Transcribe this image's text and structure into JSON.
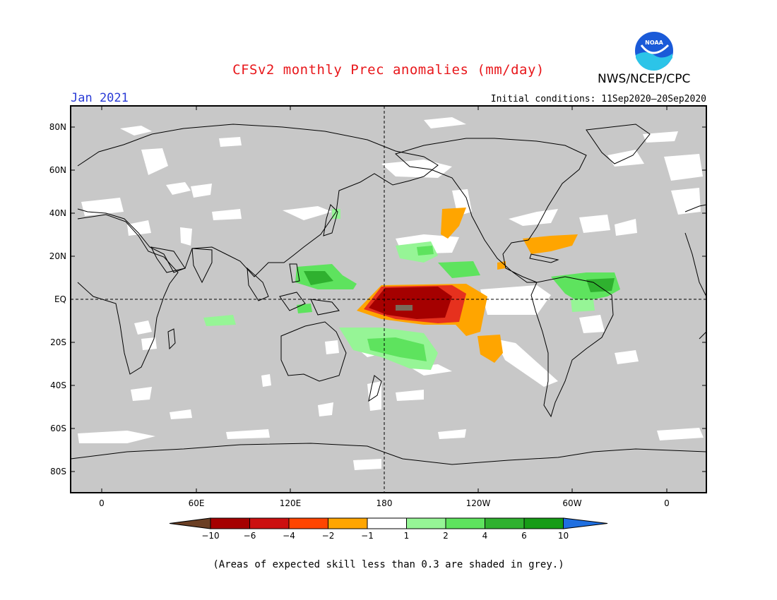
{
  "header": {
    "title": "CFSv2 monthly Prec anomalies (mm/day)",
    "agency": "NWS/NCEP/CPC",
    "logo_text": "NOAA",
    "month": "Jan 2021",
    "initial_conditions": "Initial conditions: 11Sep2020–20Sep2020"
  },
  "map": {
    "projection": "equirectangular",
    "lon_range": [
      -20,
      380
    ],
    "lat_range": [
      -90,
      90
    ],
    "x_ticks": [
      "0",
      "60E",
      "120E",
      "180",
      "120W",
      "60W",
      "0"
    ],
    "y_ticks": [
      "80N",
      "60N",
      "40N",
      "20N",
      "EQ",
      "20S",
      "40S",
      "60S",
      "80S"
    ],
    "land_color": "#c8c8c8",
    "grid_style": "dashed lines at equator and 180"
  },
  "anomaly_regions": [
    {
      "name": "central-pacific-dry-core",
      "value": -6,
      "color": "#a50000"
    },
    {
      "name": "central-pacific-dry",
      "value": -4,
      "color": "#e6311e"
    },
    {
      "name": "eastern-pacific-dry",
      "value": -2,
      "color": "#ffa500"
    },
    {
      "name": "north-pacific-dry",
      "value": -2,
      "color": "#ffa500"
    },
    {
      "name": "gulf-of-mexico-dry",
      "value": -2,
      "color": "#ffa500"
    },
    {
      "name": "western-pacific-wet",
      "value": 4,
      "color": "#2fb12f"
    },
    {
      "name": "south-pacific-wet",
      "value": 2,
      "color": "#5ee35e"
    },
    {
      "name": "amazon-wet",
      "value": 4,
      "color": "#2fb12f"
    }
  ],
  "colorbar": {
    "labels": [
      "−10",
      "−6",
      "−4",
      "−2",
      "−1",
      "1",
      "2",
      "4",
      "6",
      "10"
    ],
    "colors": [
      "#6b3f24",
      "#a50000",
      "#cc1010",
      "#ff4500",
      "#ffa500",
      "#ffffff",
      "#96f596",
      "#5ee35e",
      "#2fb12f",
      "#169c16",
      "#1f6fe0"
    ]
  },
  "footnote": "(Areas of expected skill less than 0.3 are shaded in grey.)"
}
